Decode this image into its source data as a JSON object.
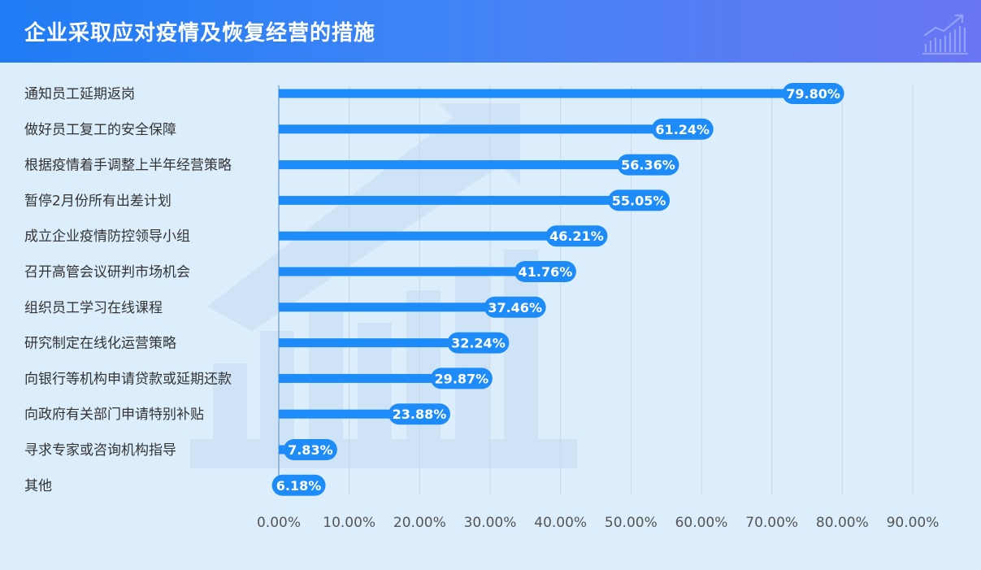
{
  "header": {
    "title": "企业采取应对疫情及恢复经营的措施"
  },
  "colors": {
    "bar": "#1d8cf8",
    "grid": "#c9d7e4",
    "axis": "#7fa8d0",
    "background": "#dceefc"
  },
  "chart_data": {
    "type": "bar",
    "orientation": "horizontal",
    "title": "企业采取应对疫情及恢复经营的措施",
    "categories": [
      "通知员工延期返岗",
      "做好员工复工的安全保障",
      "根据疫情着手调整上半年经营策略",
      "暂停2月份所有出差计划",
      "成立企业疫情防控领导小组",
      "召开高管会议研判市场机会",
      "组织员工学习在线课程",
      "研究制定在线化运营策略",
      "向银行等机构申请贷款或延期还款",
      "向政府有关部门申请特别补贴",
      "寻求专家或咨询机构指导",
      "其他"
    ],
    "values": [
      79.8,
      61.24,
      56.36,
      55.05,
      46.21,
      41.76,
      37.46,
      32.24,
      29.87,
      23.88,
      7.83,
      6.18
    ],
    "value_labels": [
      "79.80%",
      "61.24%",
      "56.36%",
      "55.05%",
      "46.21%",
      "41.76%",
      "37.46%",
      "32.24%",
      "29.87%",
      "23.88%",
      "7.83%",
      "6.18%"
    ],
    "xlim": [
      0,
      90
    ],
    "xticks": [
      0,
      10,
      20,
      30,
      40,
      50,
      60,
      70,
      80,
      90
    ],
    "xtick_labels": [
      "0.00%",
      "10.00%",
      "20.00%",
      "30.00%",
      "40.00%",
      "50.00%",
      "60.00%",
      "70.00%",
      "80.00%",
      "90.00%"
    ],
    "grid": true,
    "xlabel": "",
    "ylabel": ""
  }
}
